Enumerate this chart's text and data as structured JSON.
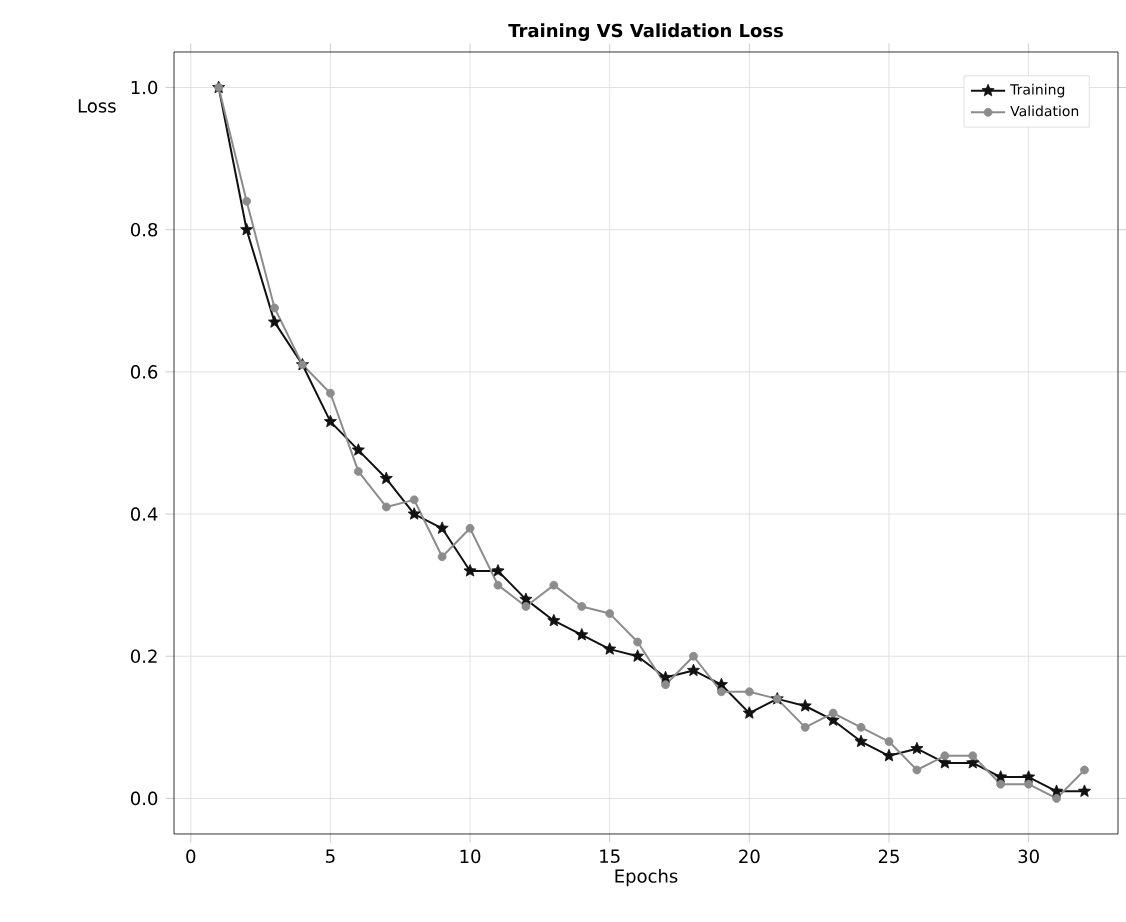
{
  "chart_data": {
    "type": "line",
    "title": "Training VS Validation Loss",
    "xlabel": "Epochs",
    "ylabel": "Loss",
    "x": [
      1,
      2,
      3,
      4,
      5,
      6,
      7,
      8,
      9,
      10,
      11,
      12,
      13,
      14,
      15,
      16,
      17,
      18,
      19,
      20,
      21,
      22,
      23,
      24,
      25,
      26,
      27,
      28,
      29,
      30,
      31,
      32
    ],
    "series": [
      {
        "name": "Training",
        "color": "#111111",
        "marker": "star",
        "values": [
          1.0,
          0.8,
          0.67,
          0.61,
          0.53,
          0.49,
          0.45,
          0.4,
          0.38,
          0.32,
          0.32,
          0.28,
          0.25,
          0.23,
          0.21,
          0.2,
          0.17,
          0.18,
          0.16,
          0.12,
          0.14,
          0.13,
          0.11,
          0.08,
          0.06,
          0.07,
          0.05,
          0.05,
          0.03,
          0.03,
          0.01,
          0.01
        ]
      },
      {
        "name": "Validation",
        "color": "#8c8c8c",
        "marker": "circle",
        "values": [
          1.0,
          0.84,
          0.69,
          0.61,
          0.57,
          0.46,
          0.41,
          0.42,
          0.34,
          0.38,
          0.3,
          0.27,
          0.3,
          0.27,
          0.26,
          0.22,
          0.16,
          0.2,
          0.15,
          0.15,
          0.14,
          0.1,
          0.12,
          0.1,
          0.08,
          0.04,
          0.06,
          0.06,
          0.02,
          0.02,
          0.0,
          0.04
        ]
      }
    ],
    "xlim": [
      -0.6,
      33.2
    ],
    "ylim": [
      -0.05,
      1.05
    ],
    "xticks": [
      0,
      5,
      10,
      15,
      20,
      25,
      30
    ],
    "yticks": [
      {
        "value": 0,
        "label": "0.0"
      },
      {
        "value": 0.2,
        "label": "0.2"
      },
      {
        "value": 0.4,
        "label": "0.4"
      },
      {
        "value": 0.6,
        "label": "0.6"
      },
      {
        "value": 0.8,
        "label": "0.8"
      },
      {
        "value": 1.0,
        "label": "1.0"
      }
    ],
    "grid": true,
    "legend": "top right",
    "line_style": "solid"
  }
}
